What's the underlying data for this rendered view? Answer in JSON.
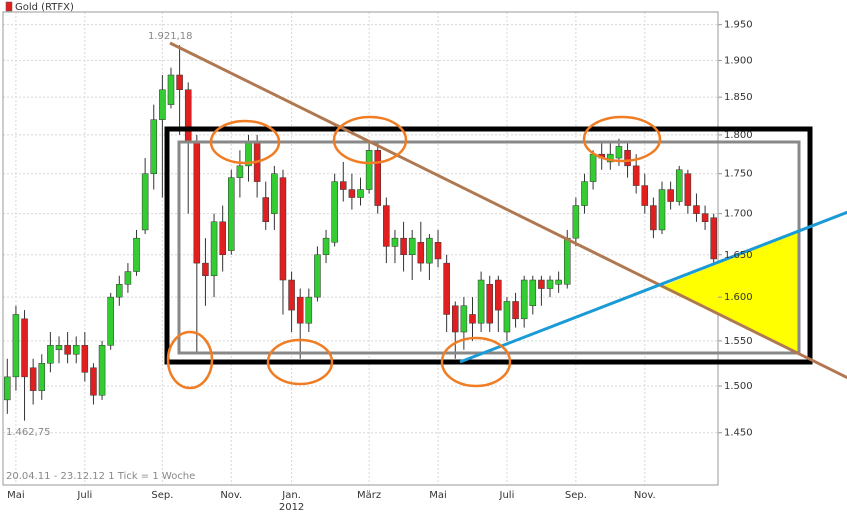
{
  "chart_data": {
    "type": "candlestick",
    "legend": "Gold (RTFX)",
    "up_color": "#33cc33",
    "down_color": "#e02020",
    "log_scale": true,
    "grid": true,
    "ylim": [
      1396,
      1968
    ],
    "yticks": [
      {
        "value": 1450,
        "label": "1.450"
      },
      {
        "value": 1500,
        "label": "1.500"
      },
      {
        "value": 1550,
        "label": "1.550"
      },
      {
        "value": 1600,
        "label": "1.600"
      },
      {
        "value": 1650,
        "label": "1.650"
      },
      {
        "value": 1700,
        "label": "1.700"
      },
      {
        "value": 1750,
        "label": "1.750"
      },
      {
        "value": 1800,
        "label": "1.800"
      },
      {
        "value": 1850,
        "label": "1.850"
      },
      {
        "value": 1900,
        "label": "1.900"
      },
      {
        "value": 1950,
        "label": "1.950"
      }
    ],
    "categories": [
      null,
      "Mai",
      null,
      null,
      null,
      null,
      null,
      null,
      null,
      "Juli",
      null,
      null,
      null,
      null,
      null,
      null,
      null,
      null,
      "Sep.",
      null,
      null,
      null,
      null,
      null,
      null,
      null,
      "Nov.",
      null,
      null,
      null,
      null,
      null,
      null,
      "Jan.",
      null,
      null,
      null,
      null,
      null,
      null,
      null,
      null,
      "März",
      null,
      null,
      null,
      null,
      null,
      null,
      null,
      "Mai",
      null,
      null,
      null,
      null,
      null,
      null,
      null,
      "Juli",
      null,
      null,
      null,
      null,
      null,
      null,
      null,
      "Sep.",
      null,
      null,
      null,
      null,
      null,
      null,
      null,
      "Nov.",
      null,
      null,
      null,
      null,
      null,
      null,
      null,
      null
    ],
    "year_label": "2012",
    "open": [
      1485,
      1510,
      1575,
      1520,
      1495,
      1525,
      1540,
      1545,
      1535,
      1545,
      1520,
      1490,
      1545,
      1600,
      1615,
      1630,
      1680,
      1750,
      1820,
      1840,
      1880,
      1860,
      1790,
      1640,
      1625,
      1690,
      1655,
      1745,
      1760,
      1790,
      1720,
      1700,
      1745,
      1620,
      1600,
      1570,
      1600,
      1650,
      1665,
      1740,
      1730,
      1720,
      1730,
      1780,
      1710,
      1660,
      1670,
      1650,
      1665,
      1640,
      1665,
      1640,
      1590,
      1560,
      1580,
      1570,
      1615,
      1620,
      1560,
      1595,
      1575,
      1590,
      1620,
      1610,
      1615,
      1615,
      1670,
      1710,
      1740,
      1775,
      1765,
      1770,
      1780,
      1760,
      1735,
      1710,
      1680,
      1730,
      1715,
      1750,
      1710,
      1700,
      1695
    ],
    "high": [
      1530,
      1590,
      1585,
      1530,
      1535,
      1560,
      1555,
      1560,
      1555,
      1560,
      1525,
      1550,
      1605,
      1625,
      1640,
      1680,
      1770,
      1840,
      1880,
      1890,
      1921.18,
      1870,
      1800,
      1670,
      1700,
      1710,
      1755,
      1780,
      1800,
      1800,
      1740,
      1760,
      1755,
      1630,
      1610,
      1610,
      1660,
      1680,
      1750,
      1765,
      1750,
      1745,
      1790,
      1790,
      1720,
      1680,
      1690,
      1680,
      1690,
      1675,
      1680,
      1650,
      1595,
      1600,
      1600,
      1630,
      1625,
      1625,
      1600,
      1605,
      1625,
      1625,
      1625,
      1625,
      1630,
      1680,
      1720,
      1750,
      1780,
      1790,
      1790,
      1795,
      1790,
      1775,
      1750,
      1720,
      1740,
      1740,
      1760,
      1755,
      1725,
      1710,
      1700
    ],
    "low": [
      1470,
      1495,
      1462.75,
      1480,
      1485,
      1515,
      1525,
      1525,
      1525,
      1505,
      1480,
      1485,
      1540,
      1590,
      1605,
      1625,
      1675,
      1730,
      1720,
      1835,
      1800,
      1700,
      1535,
      1590,
      1600,
      1630,
      1650,
      1720,
      1740,
      1720,
      1680,
      1680,
      1580,
      1560,
      1530,
      1560,
      1595,
      1640,
      1660,
      1715,
      1705,
      1710,
      1725,
      1700,
      1640,
      1640,
      1630,
      1620,
      1630,
      1620,
      1635,
      1560,
      1530,
      1540,
      1550,
      1560,
      1560,
      1560,
      1550,
      1565,
      1565,
      1580,
      1590,
      1600,
      1605,
      1610,
      1660,
      1700,
      1730,
      1755,
      1755,
      1760,
      1745,
      1725,
      1700,
      1670,
      1675,
      1705,
      1710,
      1700,
      1690,
      1680,
      1640
    ],
    "close": [
      1510,
      1580,
      1510,
      1495,
      1525,
      1545,
      1545,
      1535,
      1545,
      1515,
      1490,
      1545,
      1600,
      1615,
      1630,
      1670,
      1750,
      1820,
      1860,
      1880,
      1860,
      1790,
      1640,
      1625,
      1690,
      1650,
      1745,
      1760,
      1790,
      1740,
      1690,
      1750,
      1620,
      1585,
      1570,
      1600,
      1650,
      1670,
      1740,
      1730,
      1720,
      1730,
      1780,
      1710,
      1660,
      1670,
      1650,
      1670,
      1640,
      1670,
      1645,
      1580,
      1560,
      1590,
      1570,
      1620,
      1570,
      1585,
      1595,
      1575,
      1620,
      1620,
      1610,
      1620,
      1620,
      1670,
      1710,
      1740,
      1775,
      1770,
      1775,
      1785,
      1760,
      1735,
      1710,
      1680,
      1730,
      1715,
      1755,
      1710,
      1700,
      1690,
      1645
    ],
    "annotations": [
      "1.921,18",
      "1.462,75",
      "20.04.11 - 23.12.12   1 Tick = 1 Woche"
    ]
  }
}
